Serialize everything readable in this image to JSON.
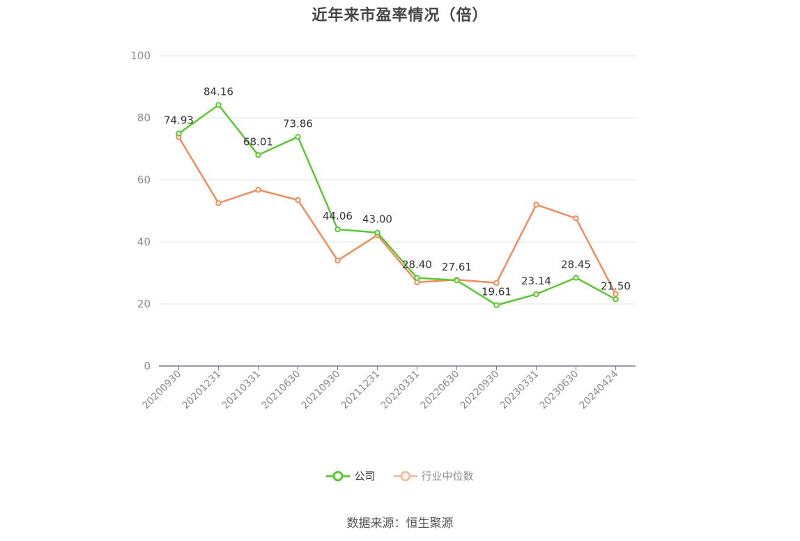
{
  "chart_data": {
    "type": "line",
    "title": "近年来市盈率情况（倍）",
    "categories": [
      "20200930",
      "20201231",
      "20210331",
      "20210630",
      "20210930",
      "20211231",
      "20220331",
      "20220630",
      "20220930",
      "20230331",
      "20230630",
      "20240424"
    ],
    "ylim": [
      0,
      100
    ],
    "yticks": [
      0,
      20,
      40,
      60,
      80,
      100
    ],
    "grid": true,
    "legend_position": "bottom",
    "series": [
      {
        "name": "公司",
        "color": "#5ac72f",
        "show_labels": true,
        "values": [
          74.93,
          84.16,
          68.01,
          73.86,
          44.06,
          43.0,
          28.4,
          27.61,
          19.61,
          23.14,
          28.45,
          21.5
        ]
      },
      {
        "name": "行业中位数",
        "color": "#f28b5a",
        "show_labels": false,
        "values": [
          73.8,
          52.5,
          56.8,
          53.5,
          34.0,
          42.2,
          27.0,
          27.8,
          26.8,
          52.0,
          47.6,
          23.2
        ]
      }
    ],
    "source": "数据来源：恒生聚源"
  }
}
